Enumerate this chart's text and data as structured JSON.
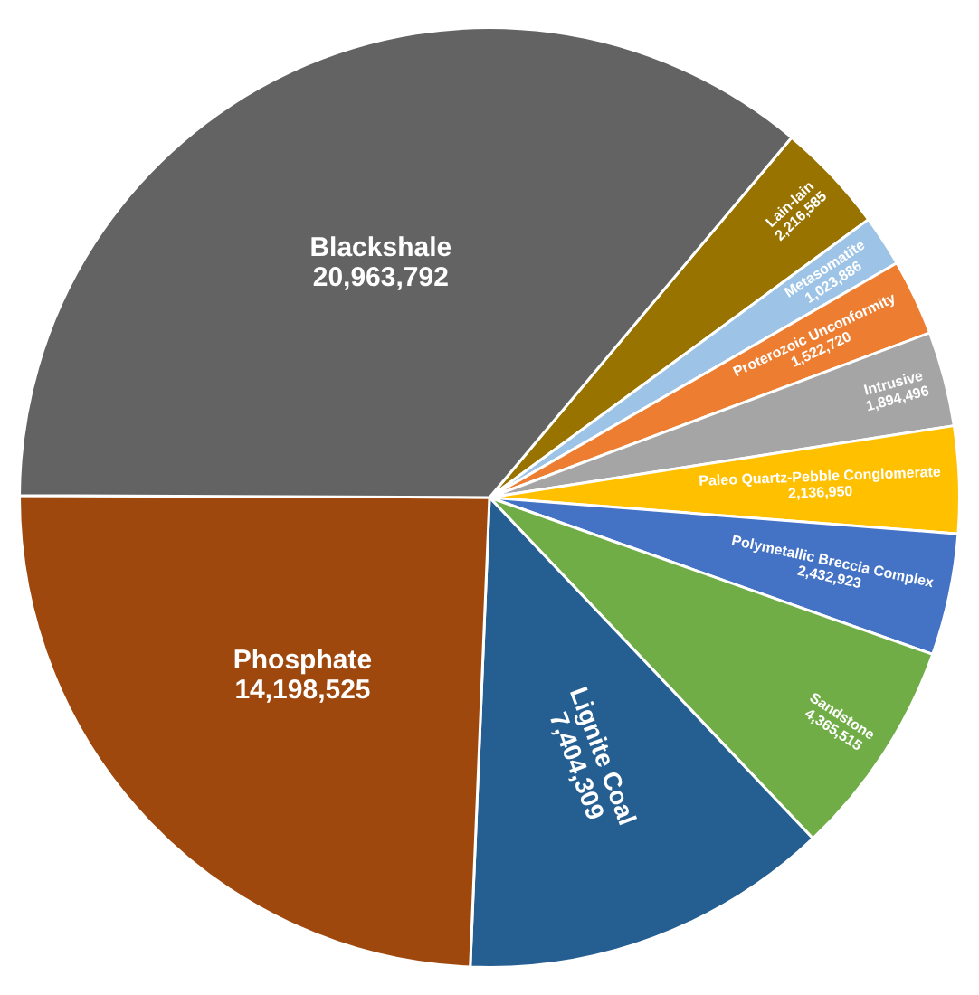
{
  "chart_data": {
    "type": "pie",
    "categories": [
      "Lain-lain",
      "Metasomatite",
      "Proterozoic Unconformity",
      "Intrusive",
      "Paleo Quartz-Pebble Conglomerate",
      "Polymetallic Breccia Complex",
      "Sandstone",
      "Lignite Coal",
      "Phosphate",
      "Blackshale"
    ],
    "values": [
      2216585,
      1023886,
      1522720,
      1894496,
      2136950,
      2432923,
      4365515,
      7404309,
      14198525,
      20963792
    ],
    "colors": [
      "#997300",
      "#9dc3e6",
      "#ed7d31",
      "#a5a5a5",
      "#ffc000",
      "#4472c4",
      "#70ad47",
      "#255e91",
      "#9e480e",
      "#636363"
    ],
    "value_labels": [
      "2,216,585",
      "1,023,886",
      "1,522,720",
      "1,894,496",
      "2,136,950",
      "2,432,923",
      "4,365,515",
      "7,404,309",
      "14,198,525",
      "20,963,792"
    ],
    "legend": false
  }
}
